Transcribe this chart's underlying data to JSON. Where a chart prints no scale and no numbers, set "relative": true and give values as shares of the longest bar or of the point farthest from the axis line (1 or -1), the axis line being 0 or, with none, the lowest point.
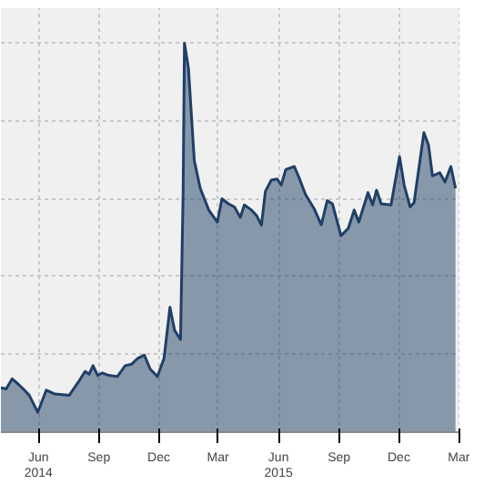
{
  "chart_data": {
    "type": "area",
    "relative": true,
    "grid": true,
    "x": [
      "2014-04-19",
      "2014-04-27",
      "2014-05-06",
      "2014-05-15",
      "2014-05-23",
      "2014-06-01",
      "2014-06-14",
      "2014-06-27",
      "2014-07-10",
      "2014-08-01",
      "2014-08-14",
      "2014-08-25",
      "2014-08-31",
      "2014-09-06",
      "2014-09-13",
      "2014-09-20",
      "2014-09-30",
      "2014-10-13",
      "2014-10-25",
      "2014-11-04",
      "2014-11-13",
      "2014-11-23",
      "2014-12-02",
      "2014-12-13",
      "2014-12-23",
      "2015-01-01",
      "2015-01-08",
      "2015-01-17",
      "2015-01-21",
      "2015-01-23",
      "2015-01-29",
      "2015-02-07",
      "2015-02-16",
      "2015-03-01",
      "2015-03-14",
      "2015-03-21",
      "2015-03-31",
      "2015-04-09",
      "2015-04-18",
      "2015-04-24",
      "2015-05-05",
      "2015-05-13",
      "2015-05-20",
      "2015-05-26",
      "2015-06-04",
      "2015-06-13",
      "2015-06-19",
      "2015-06-26",
      "2015-07-09",
      "2015-07-17",
      "2015-07-26",
      "2015-08-08",
      "2015-08-19",
      "2015-08-28",
      "2015-09-05",
      "2015-09-18",
      "2015-09-29",
      "2015-10-08",
      "2015-10-15",
      "2015-10-29",
      "2015-11-05",
      "2015-11-11",
      "2015-11-18",
      "2015-12-03",
      "2015-12-16",
      "2015-12-23",
      "2016-01-01",
      "2016-01-07",
      "2016-01-22",
      "2016-01-29",
      "2016-02-04",
      "2016-02-15",
      "2016-02-23",
      "2016-03-03",
      "2016-03-10"
    ],
    "series": [
      {
        "color": "#1f3f66",
        "values": [
          0.114,
          0.111,
          0.137,
          0.124,
          0.111,
          0.095,
          0.051,
          0.108,
          0.098,
          0.095,
          0.127,
          0.156,
          0.149,
          0.171,
          0.146,
          0.152,
          0.146,
          0.143,
          0.171,
          0.175,
          0.19,
          0.198,
          0.162,
          0.143,
          0.19,
          0.321,
          0.262,
          0.238,
          0.619,
          1,
          0.937,
          0.698,
          0.627,
          0.571,
          0.54,
          0.6,
          0.587,
          0.579,
          0.552,
          0.584,
          0.571,
          0.556,
          0.532,
          0.619,
          0.648,
          0.651,
          0.635,
          0.675,
          0.683,
          0.651,
          0.611,
          0.575,
          0.533,
          0.595,
          0.587,
          0.505,
          0.524,
          0.571,
          0.54,
          0.616,
          0.584,
          0.622,
          0.587,
          0.584,
          0.708,
          0.635,
          0.579,
          0.59,
          0.77,
          0.738,
          0.659,
          0.667,
          0.643,
          0.683,
          0.627
        ]
      }
    ],
    "xlim": [
      "2014-04-19",
      "2016-03-16"
    ],
    "xticks": [
      {
        "value": "2014-06-15",
        "label": "Jun\n2014"
      },
      {
        "value": "2014-09-15",
        "label": "Sep"
      },
      {
        "value": "2014-12-15",
        "label": "Dec"
      },
      {
        "value": "2015-03-15",
        "label": "Mar"
      },
      {
        "value": "2015-06-15",
        "label": "Jun\n2015"
      },
      {
        "value": "2015-09-15",
        "label": "Sep"
      },
      {
        "value": "2015-12-15",
        "label": "Dec"
      },
      {
        "value": "2016-03-15",
        "label": "Mar"
      }
    ]
  }
}
